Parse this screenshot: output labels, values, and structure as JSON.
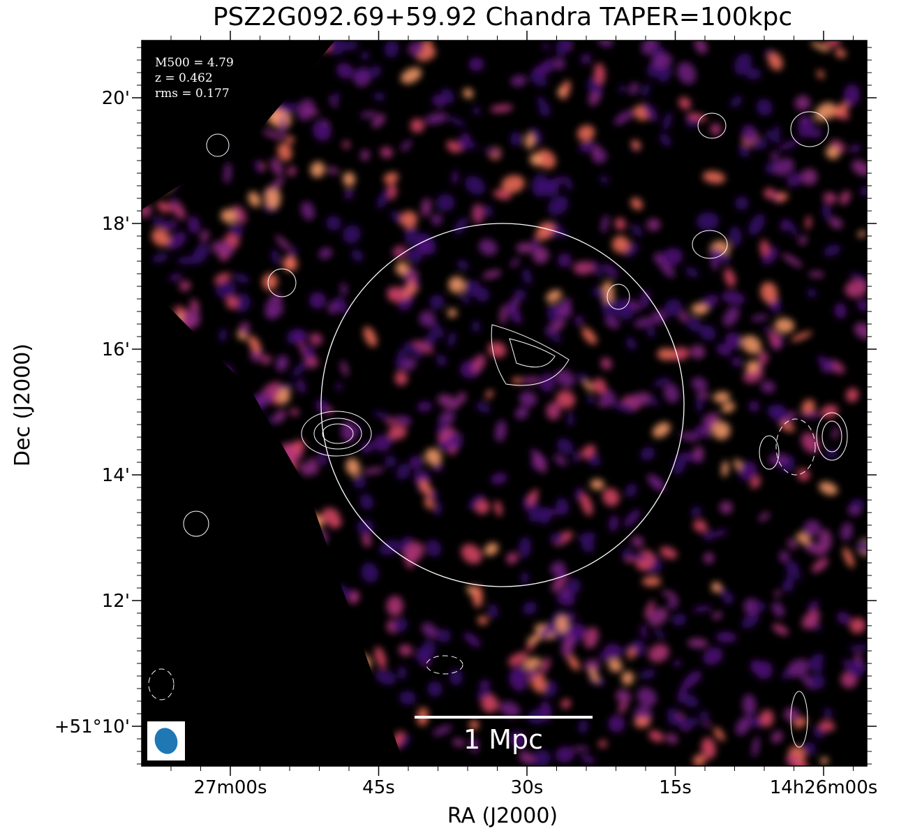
{
  "title": "PSZ2G092.69+59.92 Chandra TAPER=100kpc",
  "annotations": [
    "M500 = 4.79",
    "z = 0.462",
    "rms = 0.177"
  ],
  "scale_bar": "1 Mpc",
  "x_axis": {
    "label": "RA (J2000)",
    "ticks": [
      "27m00s",
      "45s",
      "30s",
      "15s",
      "14h26m00s"
    ]
  },
  "y_axis": {
    "label": "Dec (J2000)",
    "ticks": [
      "20'",
      "18'",
      "16'",
      "14'",
      "12'",
      "+51°10'"
    ]
  }
}
